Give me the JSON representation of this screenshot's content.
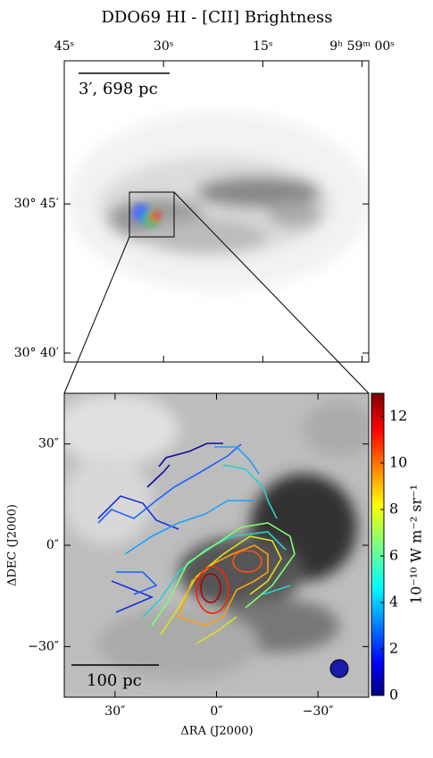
{
  "chart_data": [
    {
      "type": "image",
      "title": "DDO69 HI - [CII] Brightness",
      "xlim": [
        45,
        -1
      ],
      "xticks": [
        {
          "value": 45,
          "label": "45ˢ"
        },
        {
          "value": 30,
          "label": "30ˢ"
        },
        {
          "value": 15,
          "label": "15ˢ"
        },
        {
          "value": 0,
          "label": "9ʰ 59ᵐ 00ˢ"
        }
      ],
      "ylim": [
        39.7,
        49.8
      ],
      "yticks": [
        {
          "value": 45,
          "label": "30° 45′"
        },
        {
          "value": 40,
          "label": "30° 40′"
        }
      ],
      "scale_bar_label": "3′, 698 pc"
    },
    {
      "type": "image",
      "xlabel": "ΔRA (J2000)",
      "ylabel": "ΔDEC (J2000)",
      "xlim": [
        45,
        -45
      ],
      "xticks": [
        {
          "value": 30,
          "label": "30″"
        },
        {
          "value": 0,
          "label": "0″"
        },
        {
          "value": -30,
          "label": "−30″"
        }
      ],
      "ylim": [
        -45,
        45
      ],
      "yticks": [
        {
          "value": 30,
          "label": "30″"
        },
        {
          "value": 0,
          "label": "0″"
        },
        {
          "value": -30,
          "label": "−30″"
        }
      ],
      "scale_bar_label": "100 pc",
      "colorbar": {
        "label": "10⁻¹⁰ W m⁻² sr⁻¹",
        "lim": [
          0,
          13
        ],
        "ticks": [
          0,
          2,
          4,
          6,
          8,
          10,
          12
        ]
      }
    }
  ]
}
